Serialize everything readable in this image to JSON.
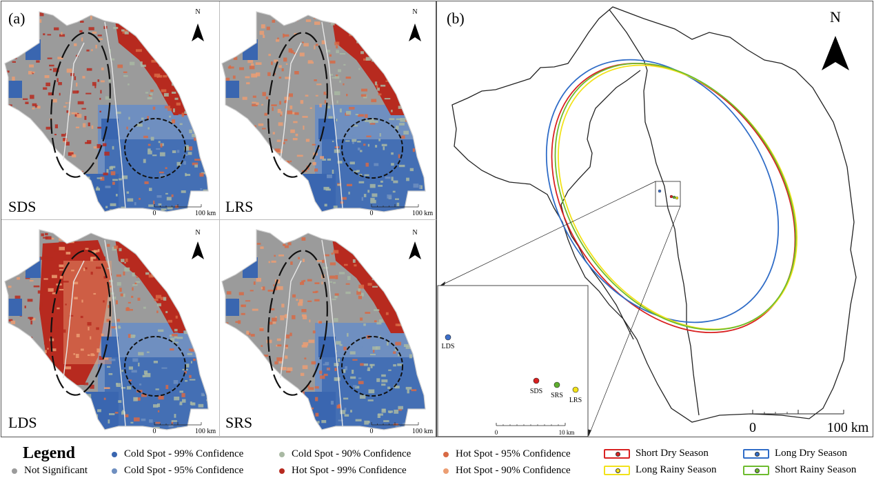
{
  "panels": {
    "a_tag": "(a)",
    "b_tag": "(b)",
    "north": "N",
    "scale_zero": "0",
    "scale_100": "100 km",
    "maps": [
      {
        "label": "SDS"
      },
      {
        "label": "LRS"
      },
      {
        "label": "LDS"
      },
      {
        "label": "SRS"
      }
    ]
  },
  "inset": {
    "points": [
      {
        "label": "LDS",
        "color": "#3d6fc9"
      },
      {
        "label": "SDS",
        "color": "#d92121"
      },
      {
        "label": "SRS",
        "color": "#5fae2e"
      },
      {
        "label": "LRS",
        "color": "#f2e21a"
      }
    ],
    "scale_zero": "0",
    "scale_10": "10 km"
  },
  "ellipses": [
    {
      "season": "Short Dry Season",
      "color": "#d92121"
    },
    {
      "season": "Long Dry Season",
      "color": "#2f6cc7"
    },
    {
      "season": "Long Rainy Season",
      "color": "#f2e21a"
    },
    {
      "season": "Short Rainy Season",
      "color": "#6dbb2e"
    }
  ],
  "legend": {
    "title": "Legend",
    "items": [
      {
        "label": "Not Significant",
        "color": "#9b9b9b"
      },
      {
        "label": "Cold Spot - 99% Confidence",
        "color": "#3a66b0"
      },
      {
        "label": "Cold Spot - 95% Confidence",
        "color": "#6f8fc0"
      },
      {
        "label": "Cold Spot - 90% Confidence",
        "color": "#a9b9a3"
      },
      {
        "label": "Hot Spot - 99% Confidence",
        "color": "#b72a1f"
      },
      {
        "label": "Hot Spot - 95% Confidence",
        "color": "#d86a45"
      },
      {
        "label": "Hot Spot - 90% Confidence",
        "color": "#ec9e73"
      }
    ],
    "seasons": [
      {
        "label": "Short Dry Season",
        "color": "#d92121"
      },
      {
        "label": "Long Dry Season",
        "color": "#2f6cc7"
      },
      {
        "label": "Long Rainy Season",
        "color": "#f2e21a"
      },
      {
        "label": "Short Rainy Season",
        "color": "#6dbb2e"
      }
    ]
  }
}
